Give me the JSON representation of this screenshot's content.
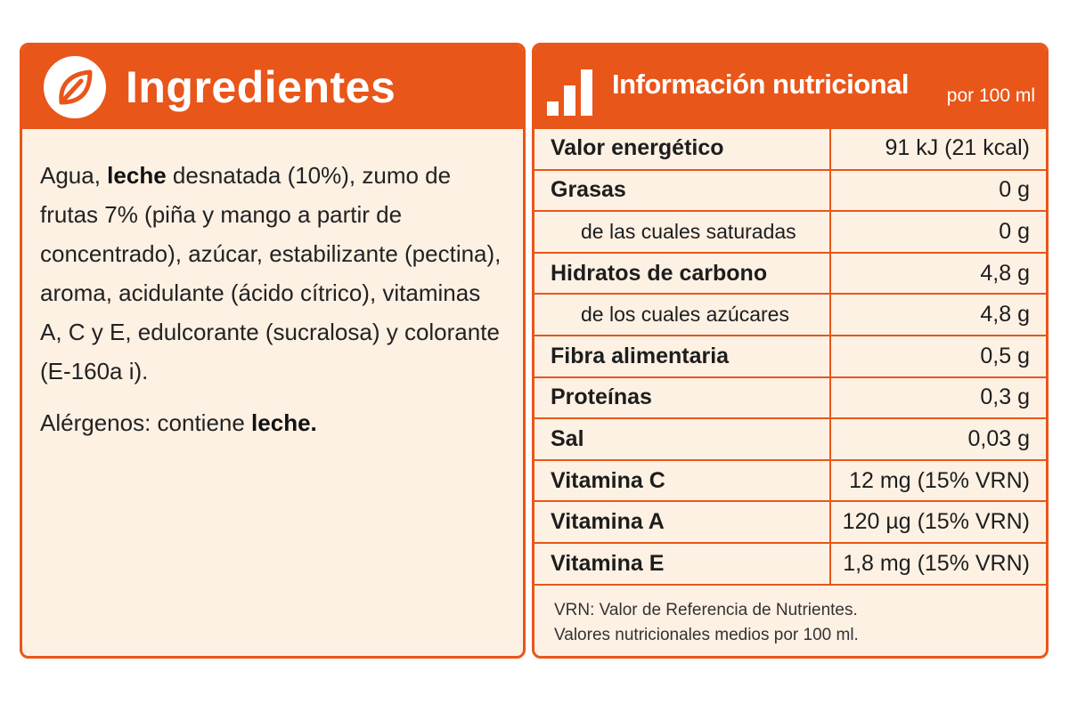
{
  "ingredients": {
    "title": "Ingredientes",
    "icon": "leaf-icon",
    "text": [
      {
        "t": "Agua, ",
        "b": false
      },
      {
        "t": "leche",
        "b": true
      },
      {
        "t": " desnatada (10%), zumo de frutas 7% (piña y mango a partir de concentrado), azúcar, estabilizante (pectina), aroma, acidulante (ácido cítrico), vitaminas A, C y E, edulcorante (sucralosa) y colorante (E-160a i).",
        "b": false
      }
    ],
    "allergens_prefix": "Alérgenos: contiene ",
    "allergens_bold": "leche."
  },
  "nutrition": {
    "title": "Información nutricional",
    "per": "por 100 ml",
    "icon": "bar-chart-icon",
    "rows": [
      {
        "label": "Valor energético",
        "value": "91 kJ (21 kcal)",
        "style": "bold"
      },
      {
        "label": "Grasas",
        "value": "0 g",
        "style": "bold"
      },
      {
        "label": "de las cuales saturadas",
        "value": "0 g",
        "style": "sub"
      },
      {
        "label": "Hidratos de carbono",
        "value": "4,8 g",
        "style": "bold"
      },
      {
        "label": "de los cuales azúcares",
        "value": "4,8 g",
        "style": "sub"
      },
      {
        "label": "Fibra alimentaria",
        "value": "0,5 g",
        "style": "bold"
      },
      {
        "label": "Proteínas",
        "value": "0,3 g",
        "style": "bold"
      },
      {
        "label": "Sal",
        "value": "0,03 g",
        "style": "bold"
      },
      {
        "label": "Vitamina C",
        "value": "12 mg (15% VRN)",
        "style": "bold"
      },
      {
        "label": "Vitamina A",
        "value": "120 µg (15% VRN)",
        "style": "bold"
      },
      {
        "label": "Vitamina E",
        "value": "1,8 mg (15% VRN)",
        "style": "bold"
      }
    ],
    "footnote": [
      "VRN: Valor de Referencia de Nutrientes.",
      "Valores nutricionales medios por 100 ml."
    ]
  },
  "colors": {
    "accent": "#e8561a",
    "panel_bg": "#fdf1e4"
  }
}
